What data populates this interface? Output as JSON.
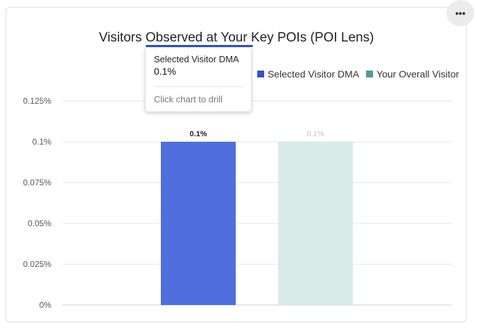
{
  "menu": {
    "icon": "more-horizontal-icon",
    "label": "•••"
  },
  "chart_data": {
    "type": "bar",
    "title": "Visitors Observed at Your Key POIs (POI Lens)",
    "categories": [
      ""
    ],
    "series": [
      {
        "name": "Selected Visitor DMA",
        "values": [
          0.1
        ],
        "data_label": "0.1%",
        "color": "#4f6fde"
      },
      {
        "name": "Your Overall Visitor",
        "values": [
          0.1
        ],
        "data_label": "0.1%",
        "color": "#d8ebe9"
      }
    ],
    "ylim": [
      0,
      0.125
    ],
    "yticks": [
      {
        "value": 0,
        "label": "0%"
      },
      {
        "value": 0.025,
        "label": "0.025%"
      },
      {
        "value": 0.05,
        "label": "0.05%"
      },
      {
        "value": 0.075,
        "label": "0.075%"
      },
      {
        "value": 0.1,
        "label": "0.1%"
      },
      {
        "value": 0.125,
        "label": "0.125%"
      }
    ],
    "grid": true,
    "legend_position": "top-right",
    "legend_swatch_colors": [
      "#3652c4",
      "#4a9d9a"
    ]
  },
  "tooltip": {
    "series": "Selected Visitor DMA",
    "value": "0.1%",
    "hint": "Click chart to drill"
  }
}
